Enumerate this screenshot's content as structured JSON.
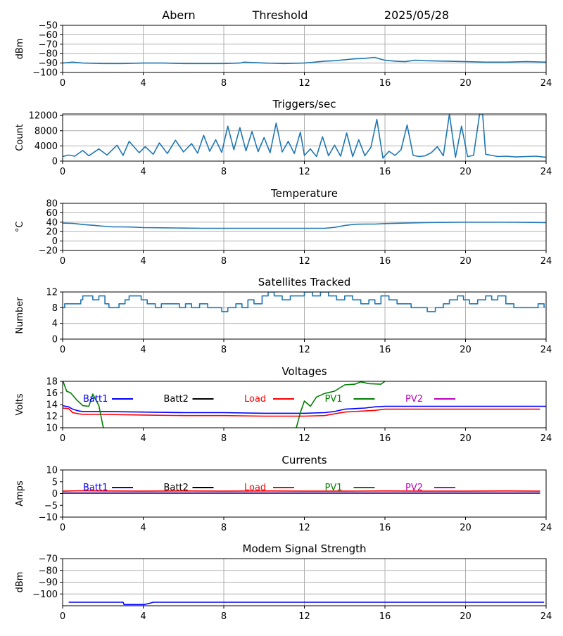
{
  "header": {
    "station": "Abern",
    "mode": "Threshold",
    "date": "2025/05/28"
  },
  "colors": {
    "default_line": "#1f77b4",
    "grid": "#b0b0b0",
    "batt1": "#0000ff",
    "batt2": "#000000",
    "load": "#ff0000",
    "pv1": "#008000",
    "pv2": "#bf00bf"
  },
  "chart_data": [
    {
      "id": "rf",
      "type": "line",
      "title": "",
      "ylabel": "dBm",
      "xlim": [
        0,
        24
      ],
      "ylim": [
        -100,
        -50
      ],
      "xticks": [
        0,
        4,
        8,
        12,
        16,
        20,
        24
      ],
      "yticks": [
        -100,
        -90,
        -80,
        -70,
        -60,
        -50
      ],
      "ytick_labels": [
        "−100",
        "−90",
        "−80",
        "−70",
        "−60",
        "−50"
      ],
      "grid": true,
      "series": [
        {
          "name": "",
          "color": "#1f77b4",
          "x": [
            0,
            0.5,
            1,
            2,
            3,
            4,
            5,
            6,
            7,
            8,
            8.8,
            9,
            10,
            11,
            12,
            12.5,
            13,
            13.5,
            14,
            14.5,
            15,
            15.5,
            15.8,
            16,
            16.5,
            17,
            17.5,
            18,
            19,
            20,
            21,
            22,
            23,
            24
          ],
          "y": [
            -90,
            -89,
            -90,
            -90.5,
            -90.5,
            -90,
            -90,
            -90.5,
            -90.5,
            -90.5,
            -90,
            -89,
            -90,
            -90.5,
            -90,
            -89,
            -88,
            -87.5,
            -86.5,
            -85.5,
            -85,
            -84,
            -86,
            -87,
            -88,
            -88.5,
            -87,
            -87.5,
            -88,
            -88.5,
            -89,
            -89,
            -88.5,
            -89
          ]
        }
      ]
    },
    {
      "id": "triggers",
      "type": "line",
      "title": "Triggers/sec",
      "ylabel": "Count",
      "xlim": [
        0,
        24
      ],
      "ylim": [
        0,
        12400
      ],
      "xticks": [
        0,
        4,
        8,
        12,
        16,
        20,
        24
      ],
      "yticks": [
        0,
        4000,
        8000,
        12000
      ],
      "ytick_labels": [
        "0",
        "4000",
        "8000",
        "12000"
      ],
      "grid": true,
      "series": [
        {
          "name": "",
          "color": "#1f77b4",
          "x": [
            0,
            0.3,
            0.6,
            1,
            1.3,
            1.8,
            2.2,
            2.7,
            3,
            3.3,
            3.8,
            4.1,
            4.5,
            4.8,
            5.2,
            5.6,
            6,
            6.4,
            6.7,
            7,
            7.3,
            7.6,
            7.9,
            8.2,
            8.5,
            8.8,
            9.1,
            9.4,
            9.7,
            10,
            10.3,
            10.6,
            10.9,
            11.2,
            11.5,
            11.8,
            12,
            12.3,
            12.6,
            12.9,
            13.2,
            13.5,
            13.8,
            14.1,
            14.4,
            14.7,
            15,
            15.3,
            15.6,
            15.9,
            16.2,
            16.5,
            16.8,
            17.1,
            17.4,
            17.7,
            18,
            18.3,
            18.6,
            18.9,
            19.2,
            19.5,
            19.8,
            20.1,
            20.4,
            20.7,
            20.85,
            21,
            21.3,
            21.6,
            22,
            22.5,
            23,
            23.5,
            24
          ],
          "y": [
            1200,
            1600,
            1300,
            2800,
            1400,
            3200,
            1600,
            4200,
            1500,
            5200,
            2200,
            3800,
            1800,
            4800,
            2000,
            5500,
            2400,
            4600,
            2100,
            6800,
            2600,
            5600,
            2300,
            9200,
            3000,
            8800,
            2700,
            7800,
            2500,
            6200,
            2200,
            10000,
            2400,
            5200,
            2000,
            7600,
            1500,
            3200,
            1200,
            6400,
            1400,
            4200,
            1300,
            7400,
            1200,
            5600,
            1400,
            3600,
            11000,
            800,
            2600,
            1500,
            3000,
            9500,
            1500,
            1200,
            1400,
            2200,
            3800,
            1400,
            12400,
            1000,
            9200,
            1200,
            1500,
            12400,
            12400,
            1800,
            1500,
            1200,
            1300,
            1100,
            1200,
            1300,
            1000
          ]
        }
      ]
    },
    {
      "id": "temperature",
      "type": "line",
      "title": "Temperature",
      "ylabel": "°C",
      "xlim": [
        0,
        24
      ],
      "ylim": [
        -20,
        80
      ],
      "xticks": [
        0,
        4,
        8,
        12,
        16,
        20,
        24
      ],
      "yticks": [
        -20,
        0,
        20,
        40,
        60,
        80
      ],
      "ytick_labels": [
        "−20",
        "0",
        "20",
        "40",
        "60",
        "80"
      ],
      "grid": true,
      "series": [
        {
          "name": "",
          "color": "#1f77b4",
          "x": [
            0,
            0.5,
            1,
            1.5,
            2,
            2.5,
            3,
            3.5,
            4,
            5,
            6,
            7,
            8,
            9,
            10,
            11,
            12,
            12.5,
            13,
            13.5,
            14,
            14.5,
            15,
            15.5,
            16,
            17,
            18,
            19,
            20,
            21,
            22,
            23,
            24
          ],
          "y": [
            38,
            37.5,
            35,
            33.5,
            31.5,
            30,
            30,
            29.5,
            28.5,
            28,
            27.5,
            27,
            27,
            27,
            27,
            27,
            27,
            27,
            27,
            29,
            33,
            35.5,
            36,
            36,
            37,
            38,
            39,
            39.5,
            40,
            40,
            40,
            39.5,
            39
          ]
        }
      ]
    },
    {
      "id": "satellites",
      "type": "line",
      "title": "Satellites Tracked",
      "ylabel": "Number",
      "xlim": [
        0,
        24
      ],
      "ylim": [
        0,
        12
      ],
      "xticks": [
        0,
        4,
        8,
        12,
        16,
        20,
        24
      ],
      "yticks": [
        0,
        4,
        8,
        12
      ],
      "ytick_labels": [
        "0",
        "4",
        "8",
        "12"
      ],
      "grid": true,
      "step": true,
      "series": [
        {
          "name": "",
          "color": "#1f77b4",
          "x": [
            0,
            0.1,
            0.6,
            0.9,
            1,
            1.5,
            1.8,
            2.1,
            2.3,
            2.8,
            3.1,
            3.3,
            3.9,
            4.2,
            4.6,
            4.9,
            5.3,
            5.8,
            6.1,
            6.4,
            6.8,
            7.2,
            7.6,
            7.9,
            8.2,
            8.6,
            8.9,
            9.2,
            9.5,
            9.9,
            10.2,
            10.5,
            10.9,
            11.3,
            11.7,
            12,
            12.4,
            12.8,
            13.2,
            13.6,
            14,
            14.4,
            14.8,
            15.2,
            15.5,
            15.8,
            16.2,
            16.6,
            17,
            17.3,
            17.7,
            18.1,
            18.5,
            18.9,
            19.2,
            19.6,
            19.9,
            20.2,
            20.6,
            21,
            21.3,
            21.6,
            22,
            22.4,
            22.8,
            23.2,
            23.6,
            23.9
          ],
          "y": [
            8,
            9,
            9,
            10,
            11,
            10,
            11,
            9,
            8,
            9,
            10,
            11,
            10,
            9,
            8,
            9,
            9,
            8,
            9,
            8,
            9,
            8,
            8,
            7,
            8,
            9,
            8,
            10,
            9,
            11,
            12,
            11,
            10,
            11,
            11,
            12,
            11,
            12,
            11,
            10,
            11,
            10,
            9,
            10,
            9,
            11,
            10,
            9,
            9,
            8,
            8,
            7,
            8,
            9,
            10,
            11,
            10,
            9,
            10,
            11,
            10,
            11,
            9,
            8,
            8,
            8,
            9,
            8
          ]
        }
      ]
    },
    {
      "id": "voltages",
      "type": "line",
      "title": "Voltages",
      "ylabel": "Volts",
      "xlim": [
        0,
        24
      ],
      "ylim": [
        10,
        18
      ],
      "xticks": [
        0,
        4,
        8,
        12,
        16,
        20,
        24
      ],
      "yticks": [
        10,
        12,
        14,
        16,
        18
      ],
      "ytick_labels": [
        "10",
        "12",
        "14",
        "16",
        "18"
      ],
      "grid": false,
      "legend": "inside top",
      "series": [
        {
          "name": "Batt1",
          "color": "#0000ff",
          "x": [
            0,
            0.3,
            0.5,
            0.8,
            1,
            2,
            4,
            6,
            8,
            10,
            12,
            13,
            13.5,
            14,
            15,
            15.5,
            16,
            18,
            20,
            22,
            24
          ],
          "y": [
            13.8,
            13.6,
            13.2,
            12.9,
            12.8,
            12.8,
            12.7,
            12.6,
            12.6,
            12.5,
            12.5,
            12.6,
            12.8,
            13.2,
            13.4,
            13.6,
            13.7,
            13.7,
            13.7,
            13.7,
            13.7
          ]
        },
        {
          "name": "Batt2",
          "color": "#000000",
          "x": [],
          "y": []
        },
        {
          "name": "Load",
          "color": "#ff0000",
          "x": [
            0,
            0.3,
            0.5,
            0.8,
            1,
            2,
            4,
            6,
            8,
            10,
            12,
            13,
            13.5,
            14,
            15,
            15.5,
            16,
            18,
            20,
            22,
            23.7
          ],
          "y": [
            13.4,
            13.3,
            12.6,
            12.4,
            12.3,
            12.3,
            12.2,
            12.1,
            12.1,
            12.0,
            12.0,
            12.1,
            12.4,
            12.7,
            12.9,
            13.0,
            13.2,
            13.2,
            13.2,
            13.2,
            13.2
          ]
        },
        {
          "name": "PV1",
          "color": "#008000",
          "x": [
            0,
            0.2,
            0.4,
            0.7,
            1,
            1.3,
            1.5,
            1.8,
            2,
            2.05
          ],
          "y": [
            18.2,
            16.3,
            16.0,
            14.8,
            13.8,
            13.7,
            15.8,
            13.8,
            10.3,
            9.8
          ],
          "x2": [
            11.6,
            11.8,
            12,
            12.3,
            12.6,
            13,
            13.5,
            14,
            14.5,
            14.8,
            15.2,
            15.8,
            16,
            16.1
          ],
          "y2": [
            10,
            12.6,
            14.6,
            13.7,
            15.3,
            15.9,
            16.3,
            17.4,
            17.5,
            17.9,
            17.6,
            17.5,
            18,
            18.3
          ]
        },
        {
          "name": "PV2",
          "color": "#bf00bf",
          "x": [],
          "y": []
        }
      ]
    },
    {
      "id": "currents",
      "type": "line",
      "title": "Currents",
      "ylabel": "Amps",
      "xlim": [
        0,
        24
      ],
      "ylim": [
        -10,
        10
      ],
      "xticks": [
        0,
        4,
        8,
        12,
        16,
        20,
        24
      ],
      "yticks": [
        -10,
        -5,
        0,
        5,
        10
      ],
      "ytick_labels": [
        "−10",
        "−5",
        "0",
        "5",
        "10"
      ],
      "grid": false,
      "legend": "inside top",
      "series": [
        {
          "name": "Batt1",
          "color": "#0000ff",
          "x": [
            0,
            4,
            8,
            12,
            16,
            20,
            23.7
          ],
          "y": [
            0.3,
            0.3,
            0.3,
            0.3,
            0.3,
            0.3,
            0.3
          ]
        },
        {
          "name": "Batt2",
          "color": "#000000",
          "x": [],
          "y": []
        },
        {
          "name": "Load",
          "color": "#ff0000",
          "x": [
            0,
            1,
            2,
            4,
            6,
            8,
            10,
            12,
            14,
            16,
            18,
            20,
            22,
            23.7
          ],
          "y": [
            1.0,
            1.2,
            1.1,
            1.0,
            1.1,
            1.0,
            1.1,
            1.0,
            1.0,
            1.1,
            1.0,
            1.0,
            1.1,
            1.0
          ]
        },
        {
          "name": "PV1",
          "color": "#008000",
          "x": [
            0,
            4,
            8,
            12,
            16,
            20,
            23.7
          ],
          "y": [
            0.2,
            0.2,
            0.2,
            0.2,
            0.2,
            0.2,
            0.2
          ]
        },
        {
          "name": "PV2",
          "color": "#bf00bf",
          "x": [
            0,
            4,
            8,
            12,
            16,
            20,
            23.7
          ],
          "y": [
            0.1,
            0.1,
            0.1,
            0.1,
            0.1,
            0.1,
            0.1
          ]
        }
      ]
    },
    {
      "id": "modem",
      "type": "line",
      "title": "Modem Signal Strength",
      "ylabel": "dBm",
      "xlim": [
        0,
        24
      ],
      "ylim": [
        -110,
        -70
      ],
      "xticks": [
        0,
        4,
        8,
        12,
        16,
        20,
        24
      ],
      "yticks": [
        -100,
        -90,
        -80,
        -70
      ],
      "ytick_labels": [
        "−100",
        "−90",
        "−80",
        "−70"
      ],
      "grid": true,
      "series": [
        {
          "name": "",
          "color": "#0000ff",
          "x": [
            0.3,
            2.9,
            3,
            3.05,
            4.05,
            4.3,
            4.5,
            8,
            12,
            16,
            20,
            23.9
          ],
          "y": [
            -107,
            -107,
            -107,
            -109,
            -109,
            -108,
            -107,
            -107,
            -107,
            -107,
            -107,
            -107
          ]
        }
      ]
    }
  ]
}
